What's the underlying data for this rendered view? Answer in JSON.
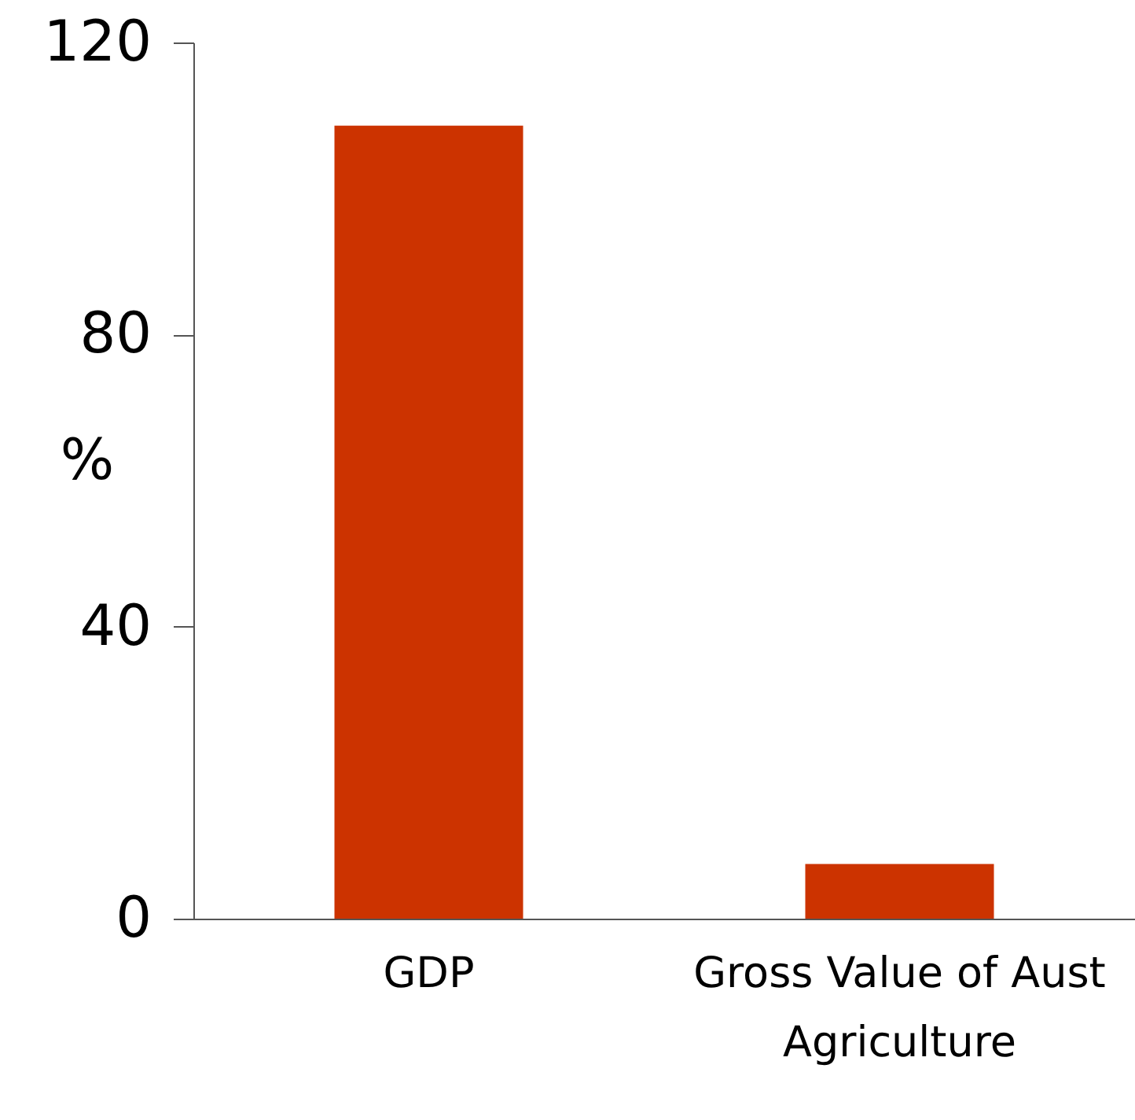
{
  "chart_data": {
    "type": "bar",
    "ylabel": "%",
    "categories": [
      "GDP",
      "Gross Value of Aust Agriculture"
    ],
    "values": [
      108.6,
      7.5
    ],
    "color": "#cc3300",
    "ylim": [
      0,
      120
    ],
    "yticks": [
      0,
      40,
      80,
      120
    ],
    "grid": false
  }
}
